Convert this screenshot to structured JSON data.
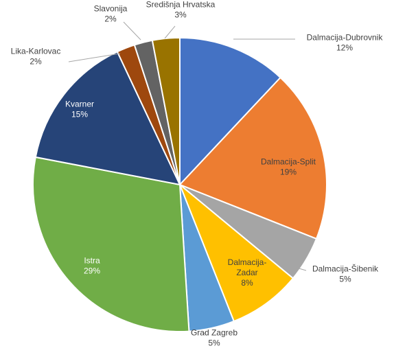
{
  "chart_data": {
    "type": "pie",
    "title": "",
    "show_legend": false,
    "label_format": "{name}\n{value}%",
    "slices": [
      {
        "name": "Dalmacija-Dubrovnik",
        "value": 12,
        "color": "#4472C4",
        "label_color": "#404040",
        "label_lines": [
          "Dalmacija-Dubrovnik",
          "12%"
        ]
      },
      {
        "name": "Dalmacija-Split",
        "value": 19,
        "color": "#ED7D31",
        "label_color": "#404040",
        "label_lines": [
          "Dalmacija-Split",
          "19%"
        ]
      },
      {
        "name": "Dalmacija-Šibenik",
        "value": 5,
        "color": "#A5A5A5",
        "label_color": "#404040",
        "label_lines": [
          "Dalmacija-Šibenik",
          "5%"
        ]
      },
      {
        "name": "Dalmacija-Zadar",
        "value": 8,
        "color": "#FFC000",
        "label_color": "#404040",
        "label_lines": [
          "Dalmacija-",
          "Zadar",
          "8%"
        ]
      },
      {
        "name": "Grad Zagreb",
        "value": 5,
        "color": "#5B9BD5",
        "label_color": "#404040",
        "label_lines": [
          "Grad Zagreb",
          "5%"
        ]
      },
      {
        "name": "Istra",
        "value": 29,
        "color": "#70AD47",
        "label_color": "#ffffff",
        "label_lines": [
          "Istra",
          "29%"
        ]
      },
      {
        "name": "Kvarner",
        "value": 15,
        "color": "#264478",
        "label_color": "#ffffff",
        "label_lines": [
          "Kvarner",
          "15%"
        ]
      },
      {
        "name": "Lika-Karlovac",
        "value": 2,
        "color": "#9E480E",
        "label_color": "#404040",
        "label_lines": [
          "Lika-Karlovac",
          "2%"
        ]
      },
      {
        "name": "Slavonija",
        "value": 2,
        "color": "#636363",
        "label_color": "#404040",
        "label_lines": [
          "Slavonija",
          "2%"
        ]
      },
      {
        "name": "Središnja Hrvatska",
        "value": 3,
        "color": "#997300",
        "label_color": "#404040",
        "label_lines": [
          "Središnja Hrvatska",
          "3%"
        ]
      }
    ]
  }
}
